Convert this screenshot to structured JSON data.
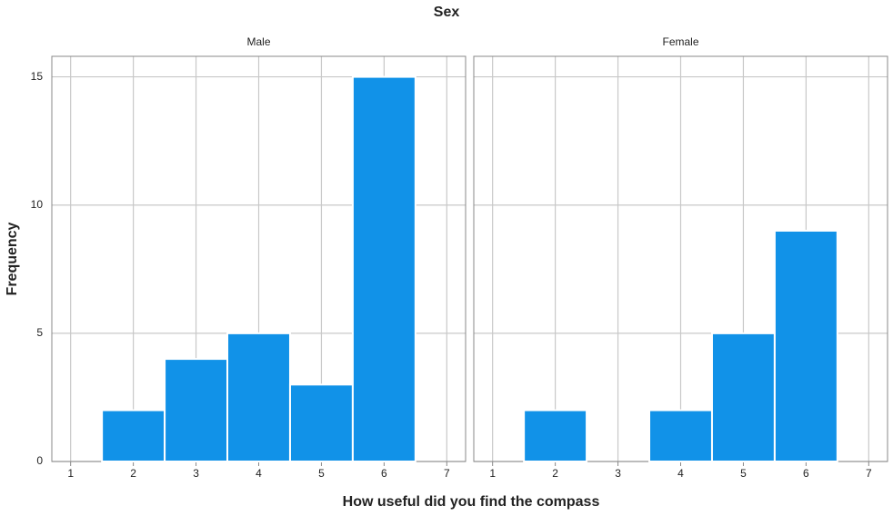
{
  "title": "Sex",
  "x_label": "How useful did you find the compass",
  "y_label": "Frequency",
  "chart_data": [
    {
      "type": "histogram",
      "title": "Male",
      "bins": [
        1.5,
        2.5,
        3.5,
        4.5,
        5.5,
        6.5
      ],
      "counts": [
        2,
        4,
        5,
        3,
        15
      ],
      "color": "#1192e8",
      "xlim": [
        0.7,
        7.3
      ],
      "xticks": [
        1,
        2,
        3,
        4,
        5,
        6,
        7
      ],
      "ylim": [
        0,
        15.8
      ],
      "yticks": [
        0,
        5,
        10,
        15
      ],
      "grid": true
    },
    {
      "type": "histogram",
      "title": "Female",
      "bins": [
        1.5,
        2.5,
        3.5,
        4.5,
        5.5,
        6.5
      ],
      "counts": [
        2,
        0,
        2,
        5,
        9
      ],
      "color": "#1192e8",
      "xlim": [
        0.7,
        7.3
      ],
      "xticks": [
        1,
        2,
        3,
        4,
        5,
        6,
        7
      ],
      "ylim": [
        0,
        15.8
      ],
      "grid": true
    }
  ]
}
